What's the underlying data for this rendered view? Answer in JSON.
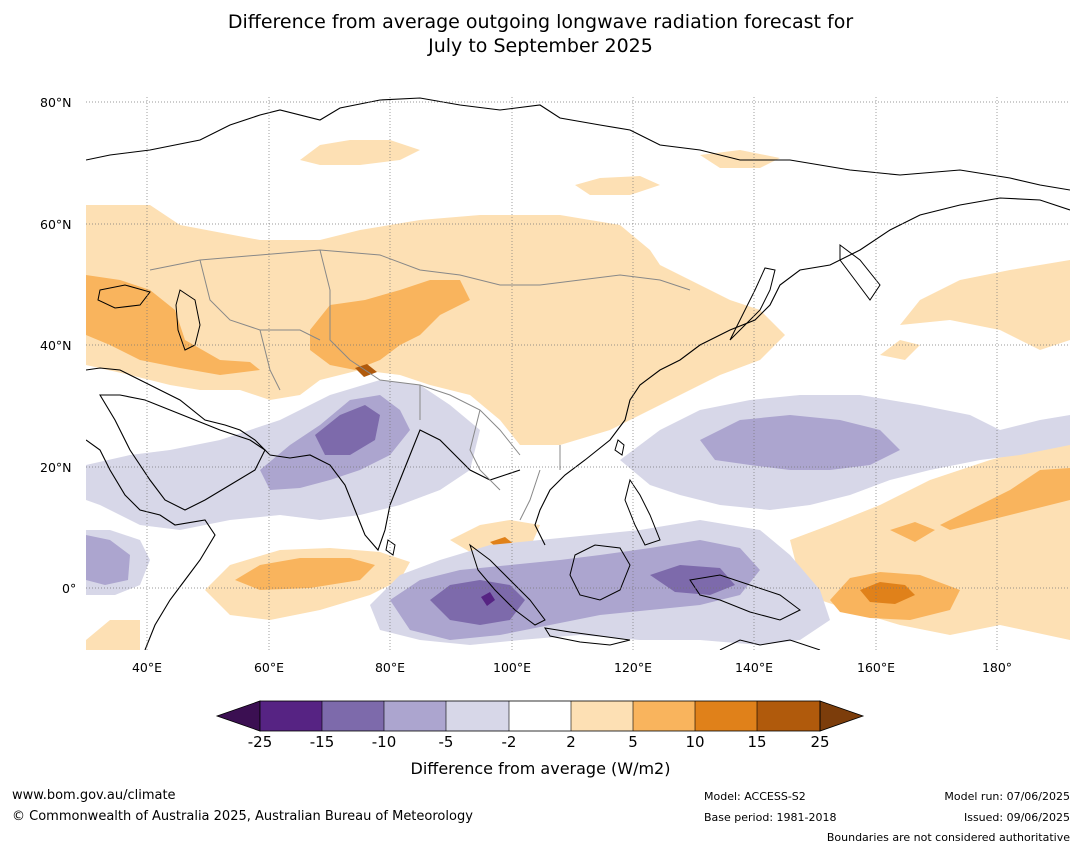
{
  "title_line1": "Difference from average outgoing longwave radiation forecast for",
  "title_line2": "July to September 2025",
  "lat_labels": [
    "80°N",
    "60°N",
    "40°N",
    "20°N",
    "0°"
  ],
  "lon_labels": [
    "40°E",
    "60°E",
    "80°E",
    "100°E",
    "120°E",
    "140°E",
    "160°E",
    "180°"
  ],
  "colorbar": {
    "ticks": [
      "-25",
      "-15",
      "-10",
      "-5",
      "-2",
      "2",
      "5",
      "10",
      "15",
      "25"
    ],
    "colors": [
      "#3b0f52",
      "#562383",
      "#7d6aab",
      "#aca5cf",
      "#d7d7e8",
      "#ffffff",
      "#fde0b4",
      "#f9b45d",
      "#e0811a",
      "#b05a0c",
      "#7c3d0b"
    ],
    "label": "Difference from average (W/m2)"
  },
  "footer": {
    "website": "www.bom.gov.au/climate",
    "copyright": "© Commonwealth of Australia 2025, Australian Bureau of Meteorology",
    "model": "Model: ACCESS-S2",
    "base_period": "Base period: 1981-2018",
    "model_run": "Model run: 07/06/2025",
    "issued": "Issued: 09/06/2025",
    "disclaimer": "Boundaries are not considered authoritative"
  }
}
